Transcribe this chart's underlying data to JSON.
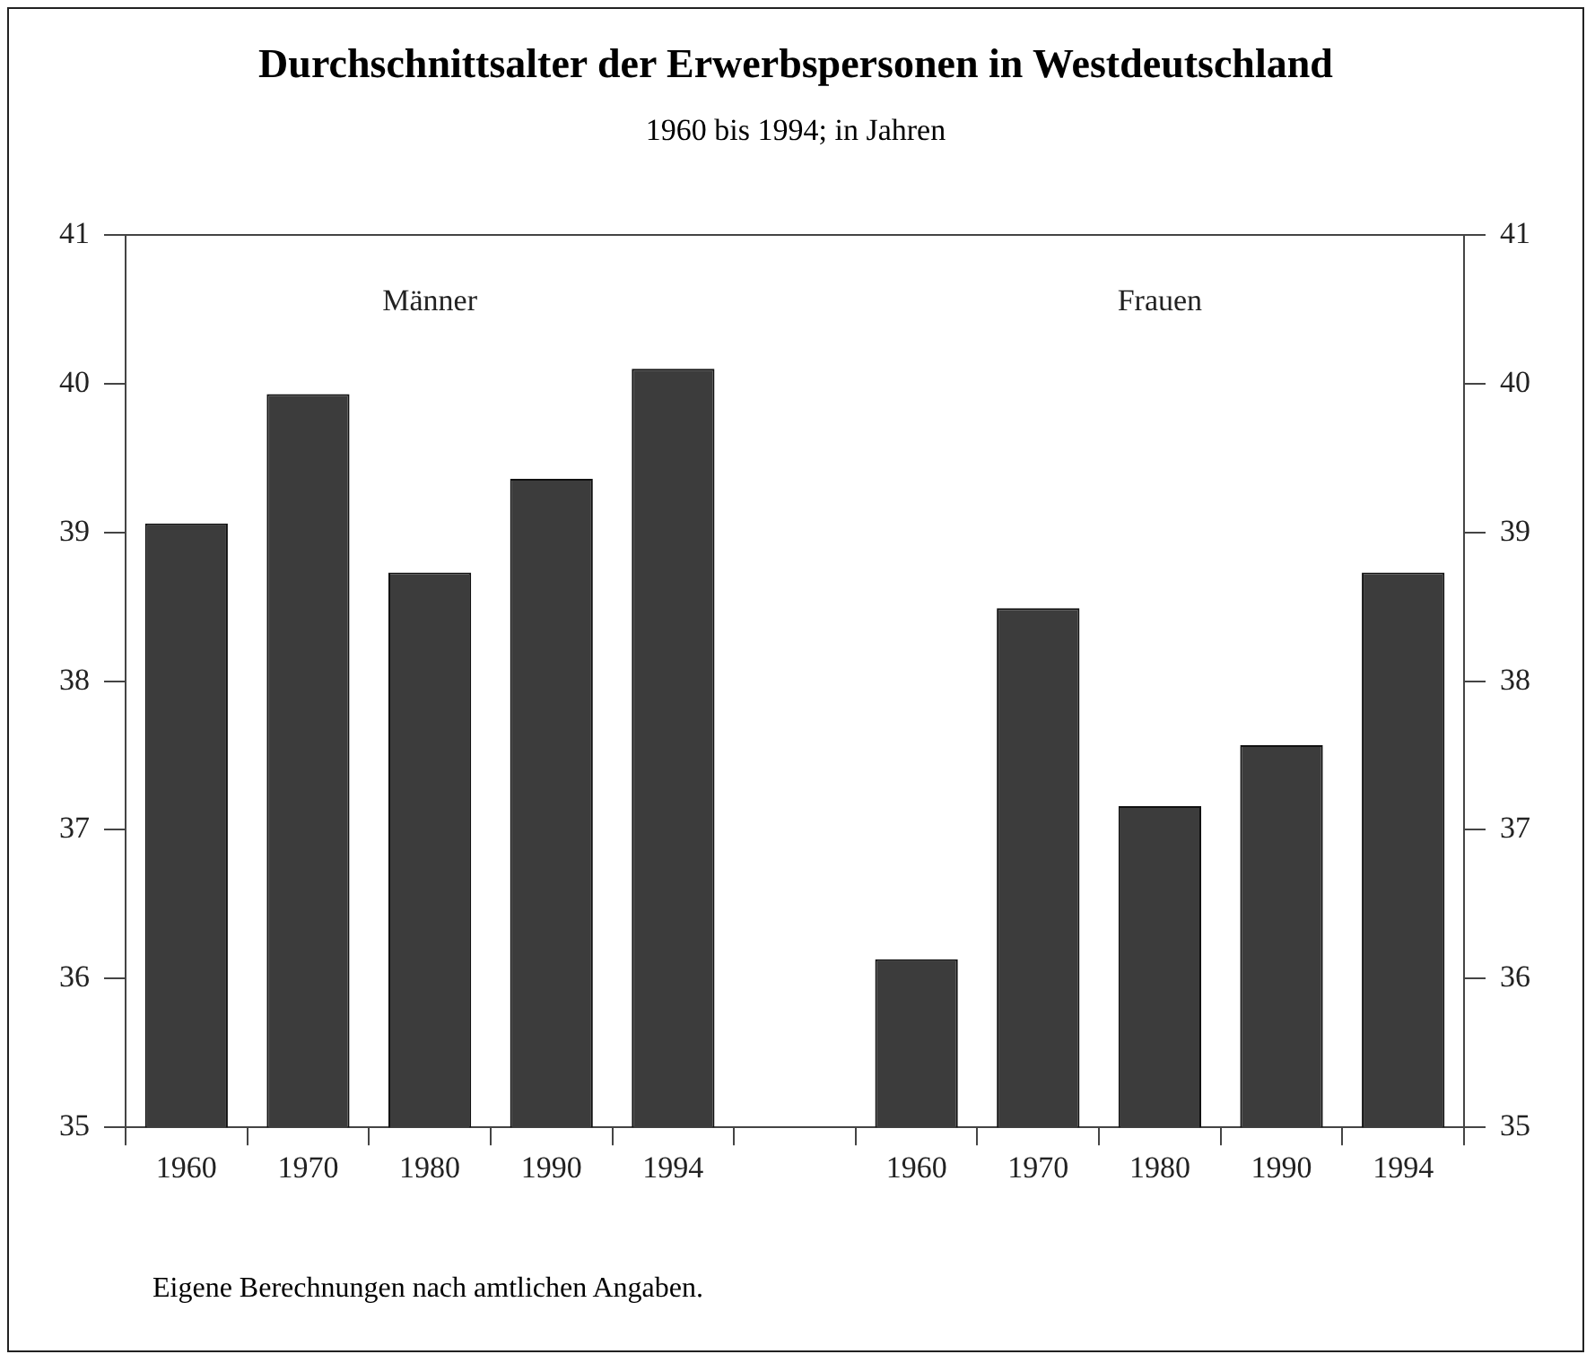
{
  "chart_data": {
    "type": "bar",
    "title": "Durchschnittsalter der Erwerbspersonen in Westdeutschland",
    "subtitle": "1960 bis 1994; in Jahren",
    "categories": [
      "1960",
      "1970",
      "1980",
      "1990",
      "1994",
      null,
      "1960",
      "1970",
      "1980",
      "1990",
      "1994"
    ],
    "values": [
      39.06,
      39.93,
      38.73,
      39.36,
      40.1,
      null,
      36.13,
      38.49,
      37.16,
      37.57,
      38.73
    ],
    "color": "#3c3c3c",
    "ylim": [
      35,
      41
    ],
    "yticks": [
      35,
      36,
      37,
      38,
      39,
      40,
      41
    ],
    "y2lim": [
      35,
      41
    ],
    "y2ticks": [
      35,
      36,
      37,
      38,
      39,
      40,
      41
    ],
    "annotations": [
      "Männer",
      "Frauen",
      "Eigene Berechnungen nach amtlichen Angaben."
    ],
    "grid": false,
    "legend": false
  }
}
